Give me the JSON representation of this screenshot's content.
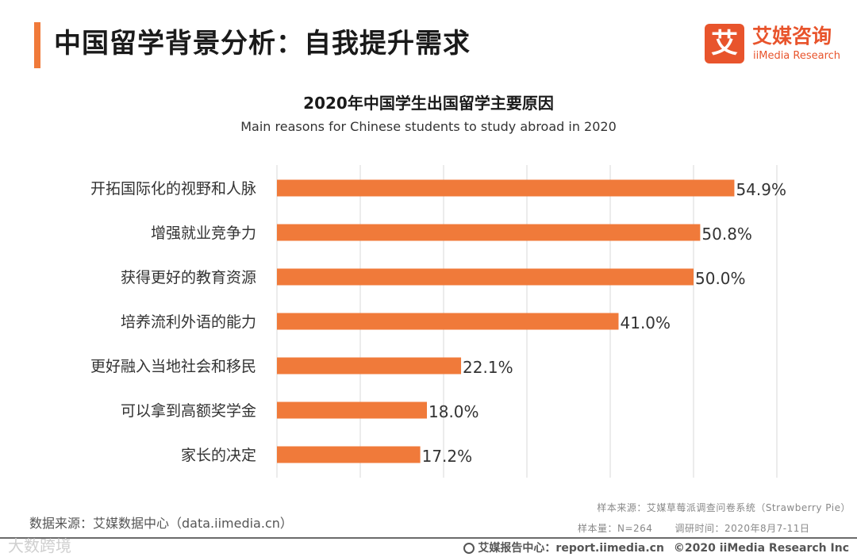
{
  "header": {
    "title": "中国留学背景分析：自我提升需求",
    "logo_mark": "艾",
    "logo_cn": "艾媒咨询",
    "logo_en": "iiMedia Research"
  },
  "chart_data": {
    "type": "bar",
    "orientation": "horizontal",
    "title": "2020年中国学生出国留学主要原因",
    "subtitle": "Main reasons for Chinese students to study abroad in 2020",
    "categories": [
      "开拓国际化的视野和人脉",
      "增强就业竞争力",
      "获得更好的教育资源",
      "培养流利外语的能力",
      "更好融入当地社会和移民",
      "可以拿到高额奖学金",
      "家长的决定"
    ],
    "values": [
      54.9,
      50.8,
      50.0,
      41.0,
      22.1,
      18.0,
      17.2
    ],
    "labels": [
      "54.9%",
      "50.8%",
      "50.0%",
      "41.0%",
      "22.1%",
      "18.0%",
      "17.2%"
    ],
    "unit": "%",
    "xlim": [
      0,
      60
    ],
    "grid": true,
    "bar_color": "#f07a3a",
    "grid_color": "#d9d9d9"
  },
  "footer": {
    "source_left": "数据来源：艾媒数据中心（data.iimedia.cn）",
    "sample_source": "样本来源：艾媒草莓派调查问卷系统（Strawberry Pie）",
    "sample_size": "样本量：N=264",
    "survey_time": "调研时间：2020年8月7-11日",
    "report_center": "艾媒报告中心：report.iimedia.cn",
    "copyright": "©2020  iiMedia Research  Inc",
    "watermark": "大数跨境"
  }
}
